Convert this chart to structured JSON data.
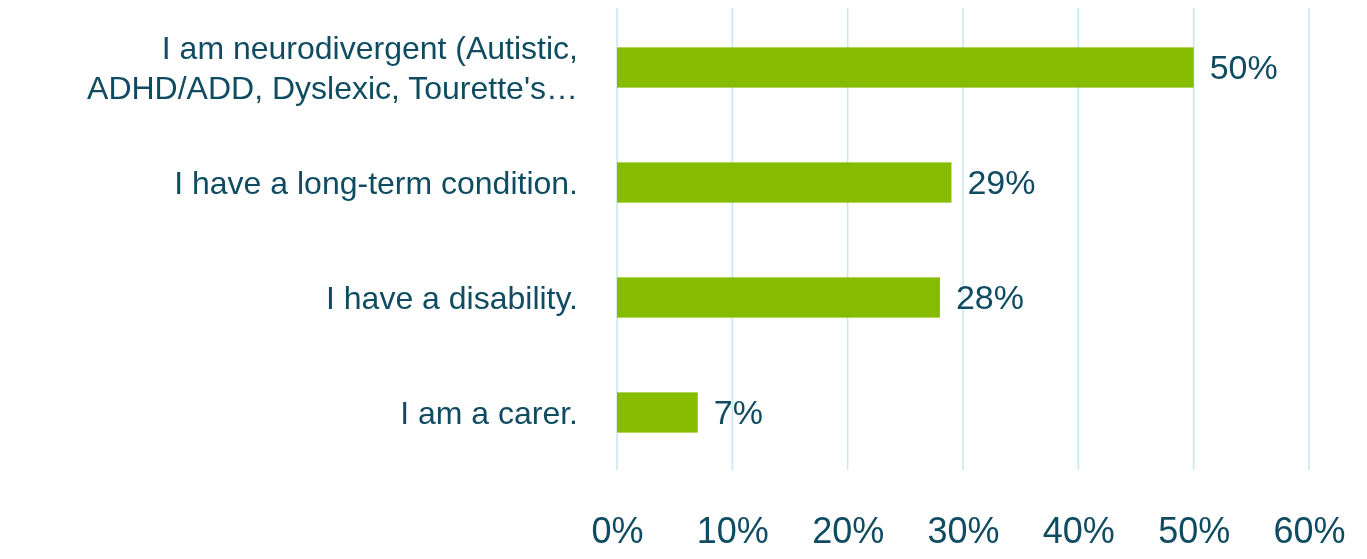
{
  "chart_data": {
    "type": "bar",
    "orientation": "horizontal",
    "categories": [
      "I am neurodivergent (Autistic, ADHD/ADD, Dyslexic, Tourette's…",
      "I have a long-term condition.",
      "I have a disability.",
      "I am a carer."
    ],
    "values": [
      50,
      29,
      28,
      7
    ],
    "value_labels": [
      "50%",
      "29%",
      "28%",
      "7%"
    ],
    "color": "#86bc00",
    "xlim": [
      0,
      60
    ],
    "xticks": [
      {
        "value": 0,
        "label": "0%"
      },
      {
        "value": 10,
        "label": "10%"
      },
      {
        "value": 20,
        "label": "20%"
      },
      {
        "value": 30,
        "label": "30%"
      },
      {
        "value": 40,
        "label": "40%"
      },
      {
        "value": 50,
        "label": "50%"
      },
      {
        "value": 60,
        "label": "60%"
      }
    ],
    "grid": "x"
  }
}
